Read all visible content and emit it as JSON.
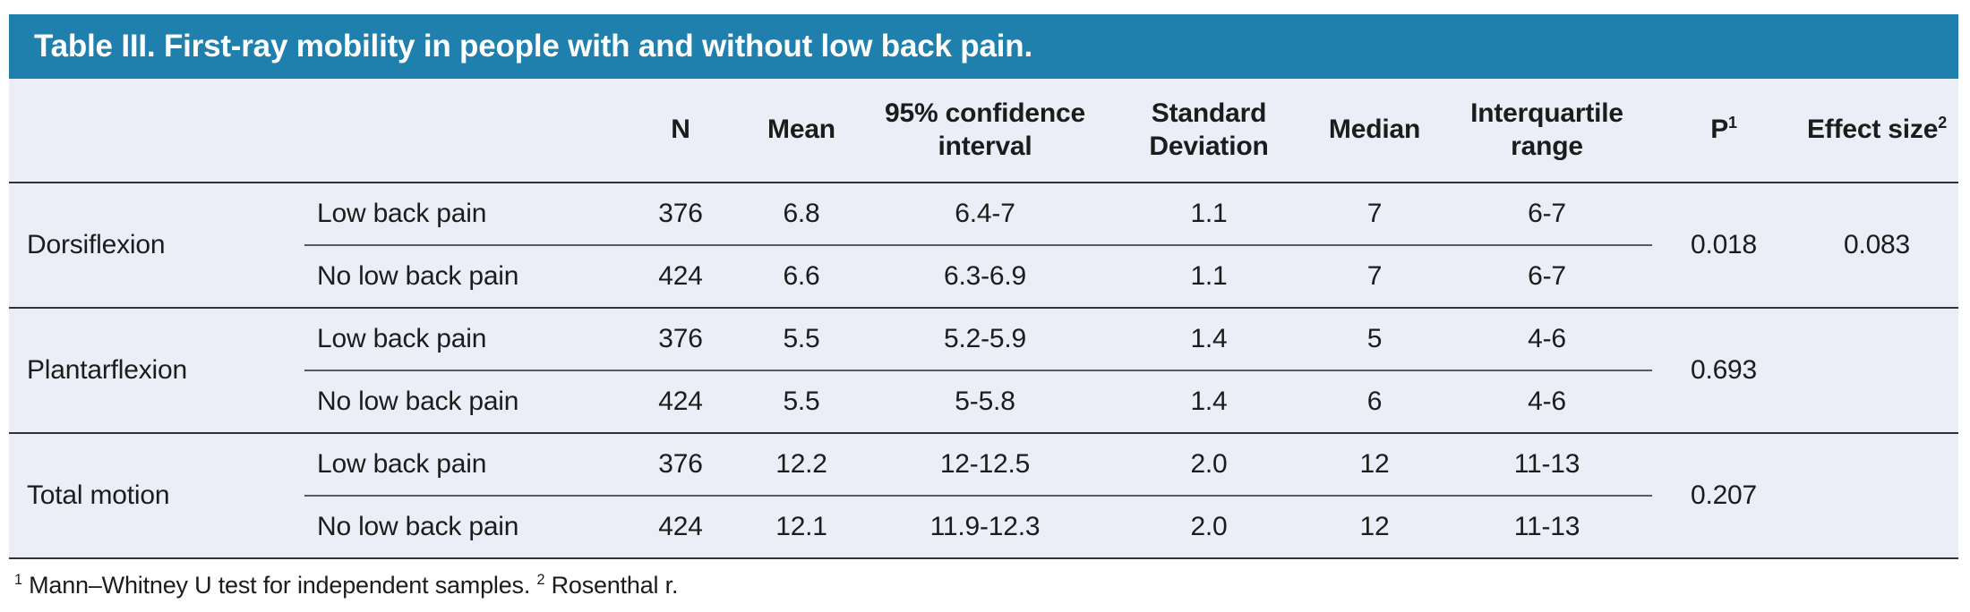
{
  "title": "Table III. First-ray mobility in people with and without low back pain.",
  "colors": {
    "header_bg": "#1f7fad",
    "body_bg": "#ebeef7",
    "title_text": "#ffffff",
    "rule_dark": "#323232",
    "rule_light": "#5a5a5a"
  },
  "headers": {
    "n": "N",
    "mean": "Mean",
    "ci": "95% confidence interval",
    "sd": "Standard Deviation",
    "median": "Median",
    "iqr": "Interquartile range",
    "p": "P",
    "p_sup": "1",
    "effect": "Effect size",
    "effect_sup": "2"
  },
  "groups": [
    {
      "label": "Dorsiflexion",
      "p": "0.018",
      "effect_size": "0.083",
      "rows": [
        {
          "condition": "Low back pain",
          "n": "376",
          "mean": "6.8",
          "ci": "6.4-7",
          "sd": "1.1",
          "median": "7",
          "iqr": "6-7"
        },
        {
          "condition": "No low back pain",
          "n": "424",
          "mean": "6.6",
          "ci": "6.3-6.9",
          "sd": "1.1",
          "median": "7",
          "iqr": "6-7"
        }
      ]
    },
    {
      "label": "Plantarflexion",
      "p": "0.693",
      "effect_size": "",
      "rows": [
        {
          "condition": "Low back pain",
          "n": "376",
          "mean": "5.5",
          "ci": "5.2-5.9",
          "sd": "1.4",
          "median": "5",
          "iqr": "4-6"
        },
        {
          "condition": "No low back pain",
          "n": "424",
          "mean": "5.5",
          "ci": "5-5.8",
          "sd": "1.4",
          "median": "6",
          "iqr": "4-6"
        }
      ]
    },
    {
      "label": "Total motion",
      "p": "0.207",
      "effect_size": "",
      "rows": [
        {
          "condition": "Low back pain",
          "n": "376",
          "mean": "12.2",
          "ci": "12-12.5",
          "sd": "2.0",
          "median": "12",
          "iqr": "11-13"
        },
        {
          "condition": "No low back pain",
          "n": "424",
          "mean": "12.1",
          "ci": "11.9-12.3",
          "sd": "2.0",
          "median": "12",
          "iqr": "11-13"
        }
      ]
    }
  ],
  "footnotes": [
    {
      "sup": "1",
      "text": "Mann–Whitney U test for independent samples."
    },
    {
      "sup": "2",
      "text": "Rosenthal r."
    }
  ]
}
